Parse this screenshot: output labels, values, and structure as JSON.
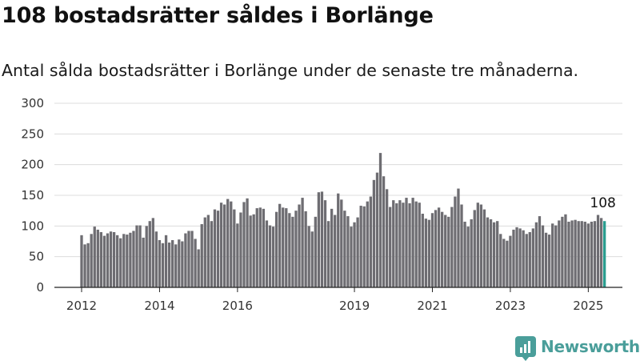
{
  "header": {
    "title": "108 bostadsrätter såldes i Borlänge",
    "subtitle": "Antal sålda bostadsrätter i Borlänge under de senaste tre månaderna."
  },
  "brand": {
    "name": "Newsworthy",
    "icon": "newsworthy-logo-icon",
    "color": "#4a9e9a"
  },
  "chart_data": {
    "type": "bar",
    "title": "108 bostadsrätter såldes i Borlänge",
    "subtitle": "Antal sålda bostadsrätter i Borlänge under de senaste tre månaderna.",
    "xlabel": "",
    "ylabel": "",
    "ylim": [
      0,
      300
    ],
    "yticks": [
      0,
      50,
      100,
      150,
      200,
      250,
      300
    ],
    "xticks": [
      {
        "label": "2012",
        "index": 0
      },
      {
        "label": "2014",
        "index": 24
      },
      {
        "label": "2016",
        "index": 48
      },
      {
        "label": "2019",
        "index": 84
      },
      {
        "label": "2021",
        "index": 108
      },
      {
        "label": "2023",
        "index": 132
      },
      {
        "label": "2025",
        "index": 156
      }
    ],
    "grid": true,
    "x_start": "2012-01",
    "frequency": "monthly",
    "bar_color": "#6e6d72",
    "highlight_color": "#2a9d8f",
    "highlight_label": "108",
    "values": [
      85,
      70,
      72,
      87,
      99,
      94,
      90,
      84,
      88,
      91,
      90,
      85,
      80,
      87,
      86,
      89,
      92,
      101,
      101,
      81,
      100,
      108,
      113,
      91,
      77,
      72,
      85,
      73,
      77,
      70,
      78,
      75,
      88,
      92,
      92,
      79,
      62,
      103,
      114,
      118,
      108,
      127,
      125,
      138,
      135,
      144,
      140,
      127,
      104,
      122,
      139,
      145,
      117,
      119,
      129,
      130,
      128,
      109,
      101,
      99,
      123,
      136,
      130,
      129,
      121,
      115,
      125,
      135,
      146,
      124,
      100,
      91,
      115,
      155,
      156,
      142,
      108,
      128,
      118,
      153,
      143,
      125,
      116,
      99,
      106,
      114,
      133,
      132,
      140,
      148,
      175,
      187,
      219,
      181,
      160,
      131,
      142,
      137,
      142,
      138,
      146,
      137,
      146,
      140,
      138,
      120,
      112,
      110,
      121,
      126,
      130,
      123,
      118,
      115,
      131,
      148,
      161,
      135,
      107,
      99,
      111,
      126,
      138,
      135,
      127,
      114,
      111,
      106,
      108,
      87,
      79,
      76,
      84,
      94,
      98,
      96,
      93,
      87,
      90,
      96,
      106,
      116,
      101,
      89,
      86,
      104,
      101,
      109,
      115,
      119,
      107,
      109,
      110,
      108,
      108,
      107,
      104,
      107,
      108,
      118,
      113,
      108
    ]
  }
}
